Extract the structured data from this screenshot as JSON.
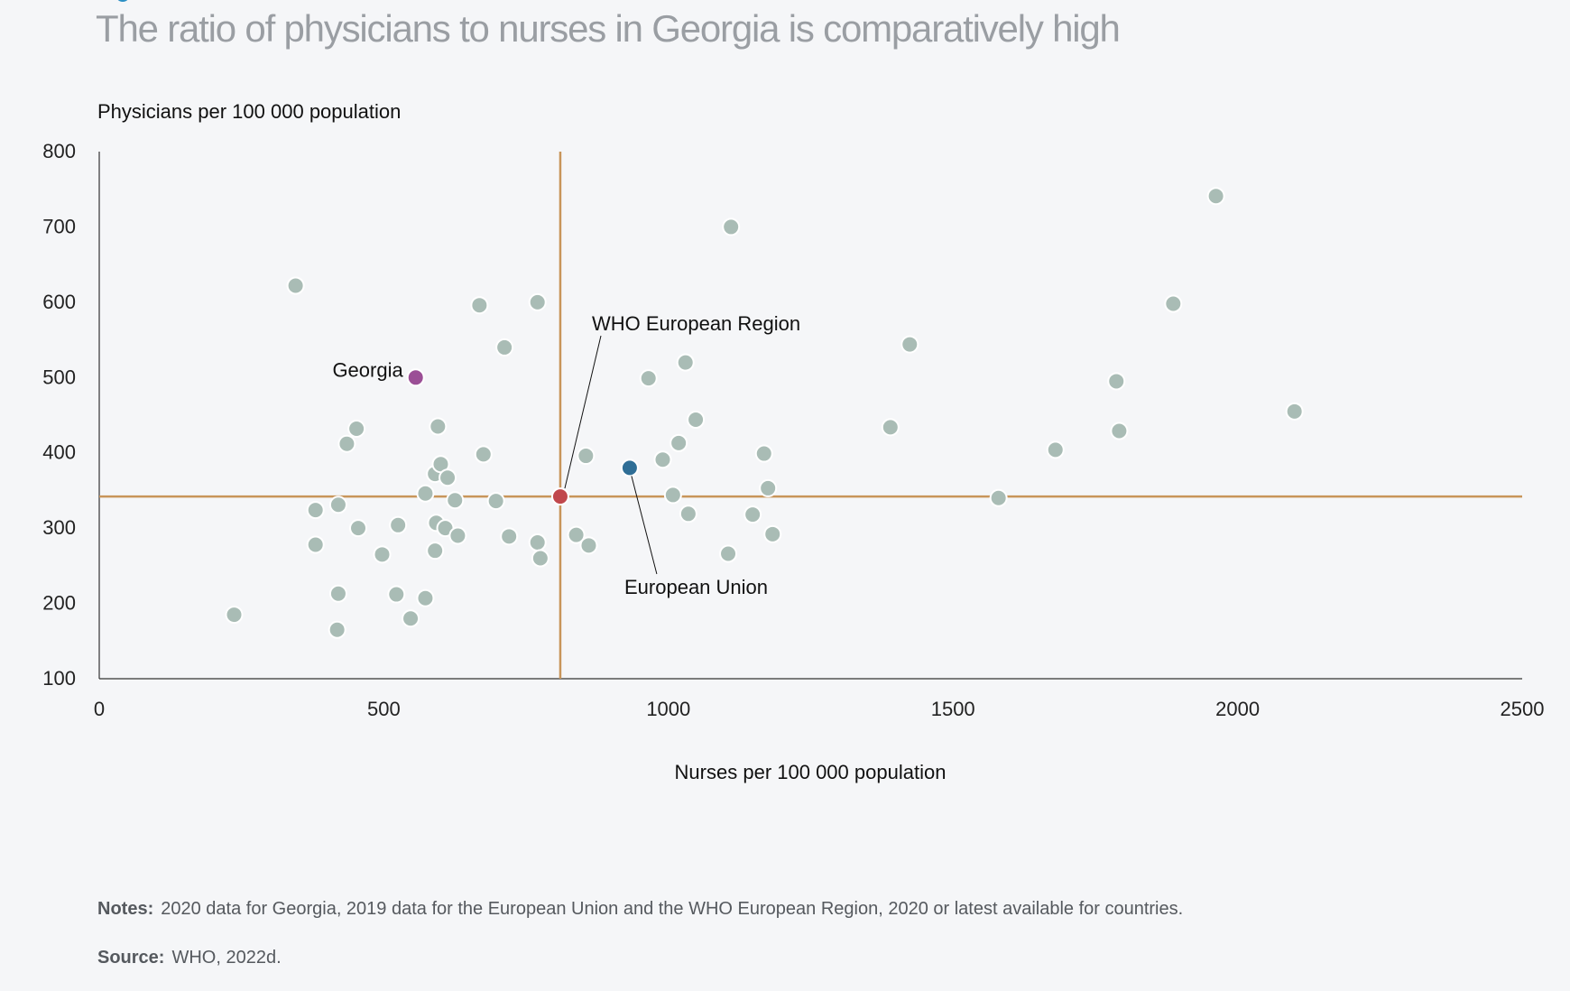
{
  "title": "The ratio of physicians to nurses in Georgia is comparatively high",
  "notes": {
    "label": "Notes:",
    "text": "2020 data for Georgia, 2019 data for the European Union and the WHO European Region, 2020 or latest available for countries."
  },
  "source": {
    "label": "Source:",
    "text": "WHO, 2022d."
  },
  "colors": {
    "country": "#a9bcb5",
    "georgia": "#9b4f96",
    "who_region": "#c0474c",
    "eu": "#2f6e96",
    "reference_lines": "#c8955a",
    "axis": "#333333"
  },
  "chart_data": {
    "type": "scatter",
    "title": "The ratio of physicians to nurses in Georgia is comparatively high",
    "xlabel": "Nurses per 100 000 population",
    "ylabel": "Physicians per 100 000 population",
    "xlim": [
      0,
      2500
    ],
    "ylim": [
      100,
      800
    ],
    "xticks": [
      "0",
      "500",
      "1000",
      "1500",
      "2000",
      "2500"
    ],
    "yticks": [
      "100",
      "200",
      "300",
      "400",
      "500",
      "600",
      "700",
      "800"
    ],
    "reference_lines": {
      "x": 810,
      "y": 342
    },
    "series": [
      {
        "points": [
          [
            237,
            185
          ],
          [
            345,
            622
          ],
          [
            380,
            324
          ],
          [
            380,
            278
          ],
          [
            420,
            331
          ],
          [
            420,
            213
          ],
          [
            418,
            165
          ],
          [
            435,
            412
          ],
          [
            452,
            432
          ],
          [
            455,
            300
          ],
          [
            497,
            265
          ],
          [
            522,
            212
          ],
          [
            525,
            304
          ],
          [
            547,
            180
          ],
          [
            573,
            207
          ],
          [
            573,
            346
          ],
          [
            590,
            372
          ],
          [
            590,
            270
          ],
          [
            592,
            307
          ],
          [
            595,
            435
          ],
          [
            600,
            385
          ],
          [
            608,
            300
          ],
          [
            612,
            367
          ],
          [
            625,
            337
          ],
          [
            630,
            290
          ],
          [
            668,
            596
          ],
          [
            675,
            398
          ],
          [
            697,
            336
          ],
          [
            712,
            540
          ],
          [
            720,
            289
          ],
          [
            770,
            600
          ],
          [
            770,
            281
          ],
          [
            775,
            260
          ],
          [
            838,
            291
          ],
          [
            855,
            396
          ],
          [
            860,
            277
          ],
          [
            965,
            499
          ],
          [
            990,
            391
          ],
          [
            1008,
            344
          ],
          [
            1018,
            413
          ],
          [
            1030,
            520
          ],
          [
            1035,
            319
          ],
          [
            1048,
            444
          ],
          [
            1105,
            266
          ],
          [
            1110,
            700
          ],
          [
            1148,
            318
          ],
          [
            1168,
            399
          ],
          [
            1175,
            353
          ],
          [
            1183,
            292
          ],
          [
            1390,
            434
          ],
          [
            1424,
            544
          ],
          [
            1580,
            340
          ],
          [
            1680,
            404
          ],
          [
            1787,
            495
          ],
          [
            1792,
            429
          ],
          [
            1887,
            598
          ],
          [
            1962,
            741
          ],
          [
            2100,
            455
          ]
        ]
      },
      {
        "name": "Georgia",
        "points": [
          [
            556,
            500
          ]
        ]
      },
      {
        "name": "WHO European Region",
        "points": [
          [
            810,
            342
          ]
        ]
      },
      {
        "name": "European Union",
        "points": [
          [
            932,
            380
          ]
        ]
      }
    ]
  }
}
